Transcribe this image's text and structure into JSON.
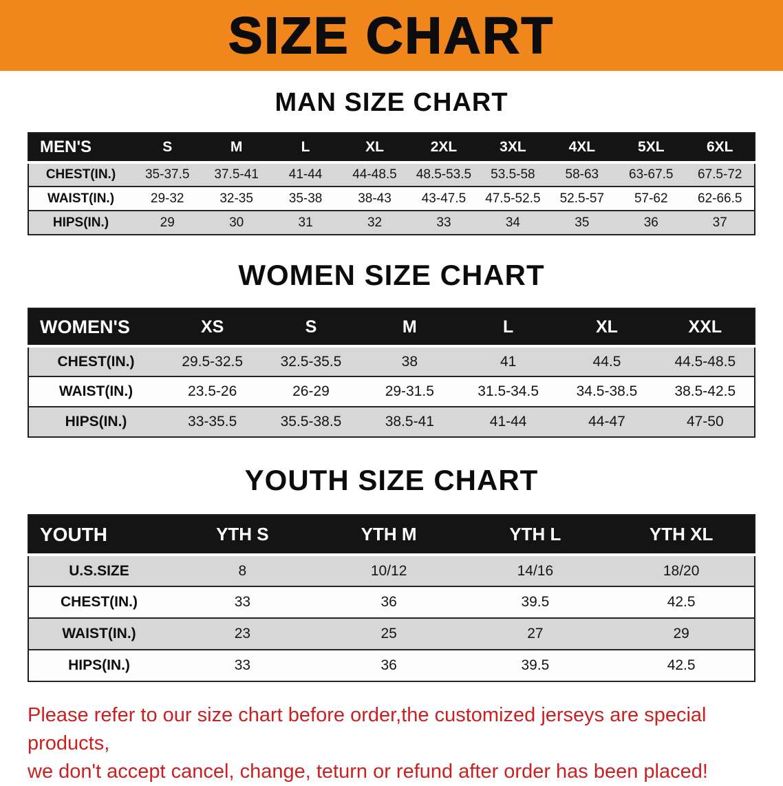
{
  "banner": {
    "title": "SIZE CHART",
    "background": "#f1861d"
  },
  "sections": [
    {
      "id": "men",
      "heading": "MAN SIZE CHART",
      "table": {
        "header": [
          "MEN'S",
          "S",
          "M",
          "L",
          "XL",
          "2XL",
          "3XL",
          "4XL",
          "5XL",
          "6XL"
        ],
        "rows": [
          {
            "label": "CHEST(IN.)",
            "values": [
              "35-37.5",
              "37.5-41",
              "41-44",
              "44-48.5",
              "48.5-53.5",
              "53.5-58",
              "58-63",
              "63-67.5",
              "67.5-72"
            ]
          },
          {
            "label": "WAIST(IN.)",
            "values": [
              "29-32",
              "32-35",
              "35-38",
              "38-43",
              "43-47.5",
              "47.5-52.5",
              "52.5-57",
              "57-62",
              "62-66.5"
            ]
          },
          {
            "label": "HIPS(IN.)",
            "values": [
              "29",
              "30",
              "31",
              "32",
              "33",
              "34",
              "35",
              "36",
              "37"
            ]
          }
        ]
      }
    },
    {
      "id": "women",
      "heading": "WOMEN SIZE CHART",
      "table": {
        "header": [
          "WOMEN'S",
          "XS",
          "S",
          "M",
          "L",
          "XL",
          "XXL"
        ],
        "rows": [
          {
            "label": "CHEST(IN.)",
            "values": [
              "29.5-32.5",
              "32.5-35.5",
              "38",
              "41",
              "44.5",
              "44.5-48.5"
            ]
          },
          {
            "label": "WAIST(IN.)",
            "values": [
              "23.5-26",
              "26-29",
              "29-31.5",
              "31.5-34.5",
              "34.5-38.5",
              "38.5-42.5"
            ]
          },
          {
            "label": "HIPS(IN.)",
            "values": [
              "33-35.5",
              "35.5-38.5",
              "38.5-41",
              "41-44",
              "44-47",
              "47-50"
            ]
          }
        ]
      }
    },
    {
      "id": "youth",
      "heading": "YOUTH SIZE CHART",
      "table": {
        "header": [
          "YOUTH",
          "YTH S",
          "YTH M",
          "YTH L",
          "YTH XL"
        ],
        "rows": [
          {
            "label": "U.S.SIZE",
            "values": [
              "8",
              "10/12",
              "14/16",
              "18/20"
            ]
          },
          {
            "label": "CHEST(IN.)",
            "values": [
              "33",
              "36",
              "39.5",
              "42.5"
            ]
          },
          {
            "label": "WAIST(IN.)",
            "values": [
              "23",
              "25",
              "27",
              "29"
            ]
          },
          {
            "label": "HIPS(IN.)",
            "values": [
              "33",
              "36",
              "39.5",
              "42.5"
            ]
          }
        ]
      }
    }
  ],
  "disclaimer": {
    "line1": "Please refer to our size chart before order,the customized jerseys are special products,",
    "line2": "we don't accept cancel, change, teturn or refund after order has been placed!",
    "color": "#cc1f1f"
  }
}
